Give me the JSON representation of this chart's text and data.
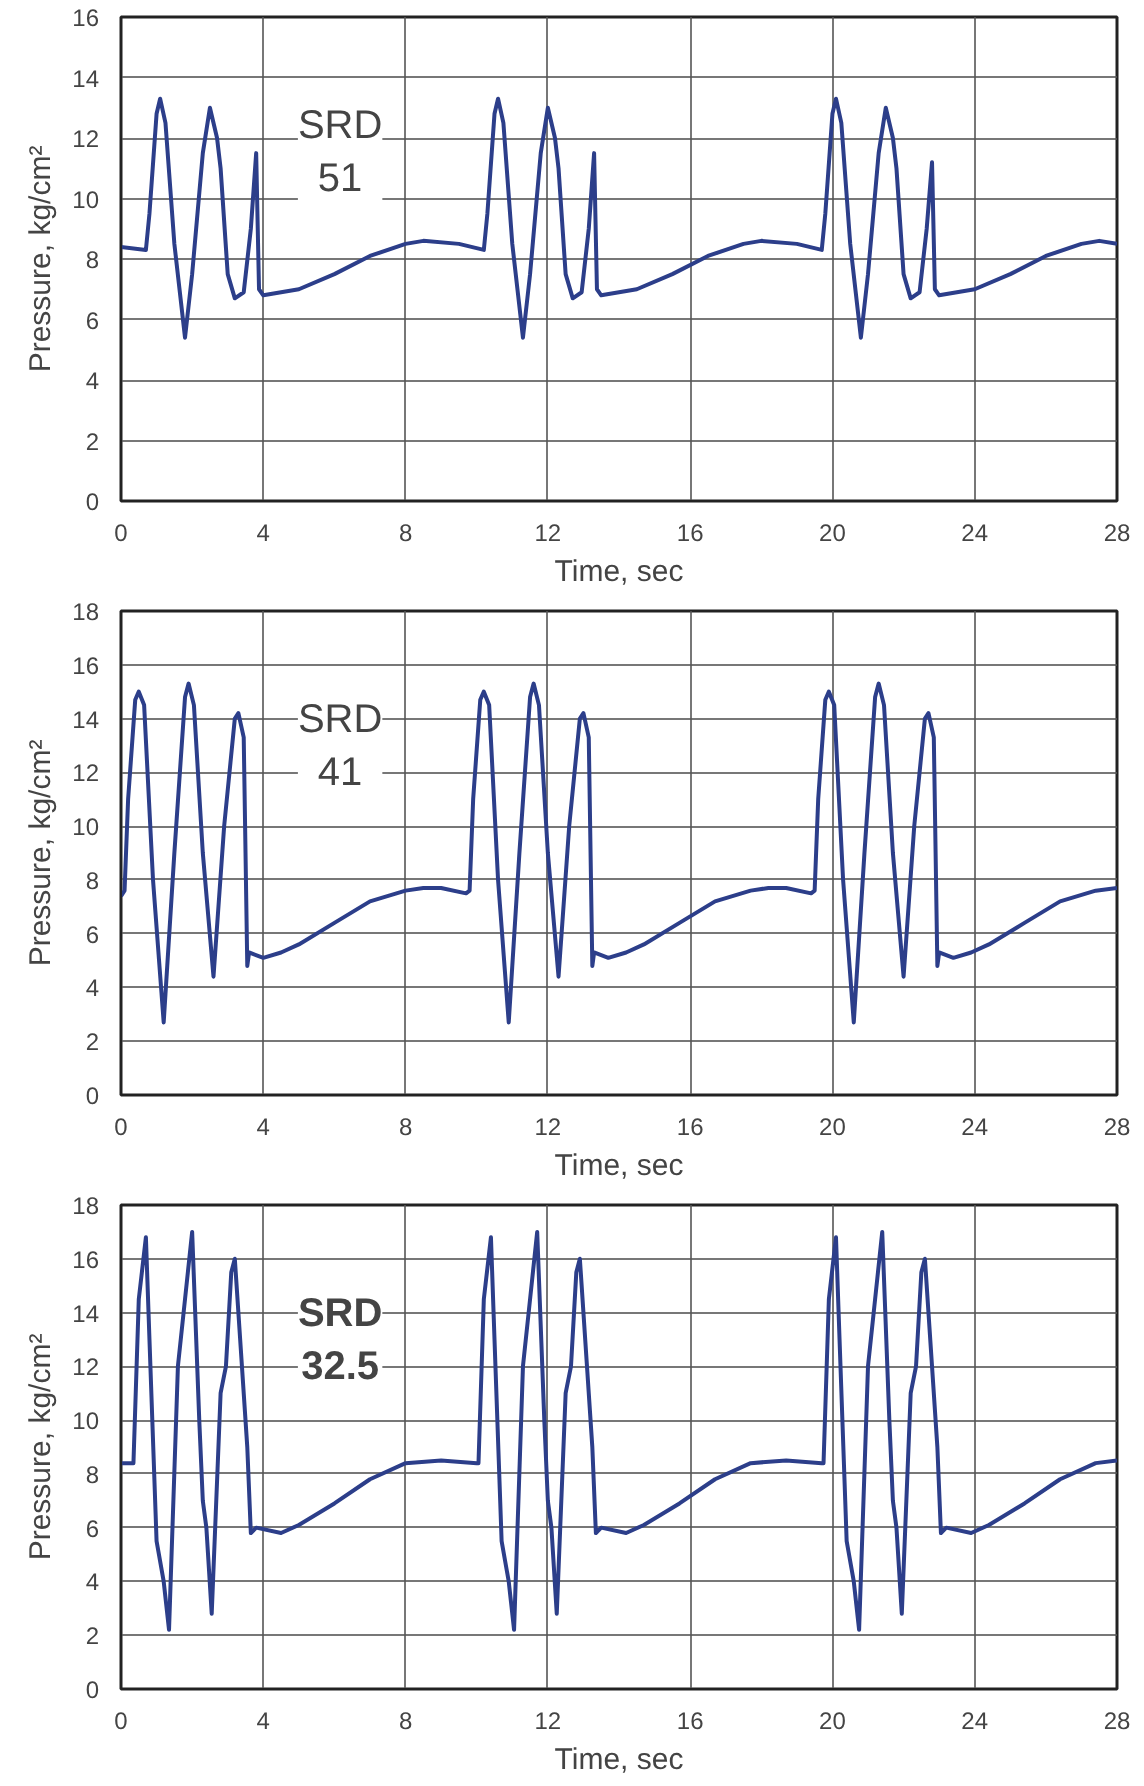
{
  "chart_data": [
    {
      "type": "line",
      "xlabel": "Time, sec",
      "ylabel": "Pressure, kg/cm²",
      "annotations": [
        "SRD\n51"
      ],
      "xlim": [
        0,
        28
      ],
      "ylim": [
        0,
        16
      ],
      "xticks": [
        0,
        4,
        8,
        12,
        16,
        20,
        24,
        28
      ],
      "yticks": [
        0,
        2,
        4,
        6,
        8,
        10,
        12,
        14,
        16
      ],
      "grid": true,
      "series": [
        {
          "color": "#2c3e8a",
          "x": [
            0,
            0.7,
            0.8,
            1.0,
            1.1,
            1.25,
            1.5,
            1.8,
            2.0,
            2.3,
            2.5,
            2.7,
            2.8,
            3.0,
            3.2,
            3.45,
            3.65,
            3.8,
            3.88,
            4.0,
            4.5,
            5.0,
            6.0,
            7.0,
            8.0,
            8.5,
            9.5,
            10.2,
            10.3,
            10.5,
            10.6,
            10.75,
            11.0,
            11.3,
            11.5,
            11.8,
            12.0,
            12.2,
            12.3,
            12.5,
            12.7,
            12.95,
            13.15,
            13.3,
            13.38,
            13.5,
            14.0,
            14.5,
            15.5,
            16.5,
            17.5,
            18.0,
            19.0,
            19.7,
            19.8,
            20.0,
            20.1,
            20.25,
            20.5,
            20.8,
            21.0,
            21.3,
            21.5,
            21.7,
            21.8,
            22.0,
            22.2,
            22.45,
            22.65,
            22.8,
            22.88,
            23.0,
            23.5,
            24.0,
            25.0,
            26.0,
            27.0,
            27.5,
            28.0
          ],
          "values": [
            8.4,
            8.3,
            9.5,
            12.8,
            13.3,
            12.5,
            8.5,
            5.4,
            7.5,
            11.5,
            13.0,
            12.0,
            11.0,
            7.5,
            6.7,
            6.9,
            9.0,
            11.5,
            7.0,
            6.8,
            6.9,
            7.0,
            7.5,
            8.1,
            8.5,
            8.6,
            8.5,
            8.3,
            9.5,
            12.8,
            13.3,
            12.5,
            8.5,
            5.4,
            7.5,
            11.5,
            13.0,
            12.0,
            11.0,
            7.5,
            6.7,
            6.9,
            9.0,
            11.5,
            7.0,
            6.8,
            6.9,
            7.0,
            7.5,
            8.1,
            8.5,
            8.6,
            8.5,
            8.3,
            9.5,
            12.8,
            13.3,
            12.5,
            8.5,
            5.4,
            7.5,
            11.5,
            13.0,
            12.0,
            11.0,
            7.5,
            6.7,
            6.9,
            9.0,
            11.2,
            7.0,
            6.8,
            6.9,
            7.0,
            7.5,
            8.1,
            8.5,
            8.6,
            8.5
          ]
        }
      ]
    },
    {
      "type": "line",
      "xlabel": "Time, sec",
      "ylabel": "Pressure, kg/cm²",
      "annotations": [
        "SRD\n41"
      ],
      "xlim": [
        0,
        28
      ],
      "ylim": [
        0,
        18
      ],
      "xticks": [
        0,
        4,
        8,
        12,
        16,
        20,
        24,
        28
      ],
      "yticks": [
        0,
        2,
        4,
        6,
        8,
        10,
        12,
        14,
        16,
        18
      ],
      "grid": true,
      "series": [
        {
          "color": "#2c3e8a",
          "x": [
            0,
            0.1,
            0.2,
            0.4,
            0.5,
            0.65,
            0.9,
            1.2,
            1.5,
            1.8,
            1.9,
            2.05,
            2.3,
            2.6,
            2.9,
            3.2,
            3.3,
            3.45,
            3.55,
            3.6,
            4.0,
            4.5,
            5.0,
            6.0,
            7.0,
            8.0,
            8.5,
            9.0,
            9.7,
            9.8,
            9.9,
            10.1,
            10.2,
            10.35,
            10.6,
            10.9,
            11.2,
            11.5,
            11.6,
            11.75,
            12.0,
            12.3,
            12.6,
            12.9,
            13.0,
            13.15,
            13.25,
            13.3,
            13.7,
            14.2,
            14.7,
            15.7,
            16.7,
            17.7,
            18.2,
            18.7,
            19.4,
            19.5,
            19.6,
            19.8,
            19.9,
            20.05,
            20.3,
            20.6,
            20.9,
            21.2,
            21.3,
            21.45,
            21.7,
            22.0,
            22.3,
            22.6,
            22.7,
            22.85,
            22.95,
            23.0,
            23.4,
            23.9,
            24.4,
            25.4,
            26.4,
            27.4,
            28.0
          ],
          "values": [
            7.4,
            7.6,
            11,
            14.7,
            15.0,
            14.5,
            8,
            2.7,
            9,
            14.8,
            15.3,
            14.5,
            9,
            4.4,
            10,
            14.0,
            14.2,
            13.3,
            4.8,
            5.3,
            5.1,
            5.3,
            5.6,
            6.4,
            7.2,
            7.6,
            7.7,
            7.7,
            7.5,
            7.6,
            11,
            14.7,
            15.0,
            14.5,
            8,
            2.7,
            9,
            14.8,
            15.3,
            14.5,
            9,
            4.4,
            10,
            14.0,
            14.2,
            13.3,
            4.8,
            5.3,
            5.1,
            5.3,
            5.6,
            6.4,
            7.2,
            7.6,
            7.7,
            7.7,
            7.5,
            7.6,
            11,
            14.7,
            15.0,
            14.5,
            8,
            2.7,
            9,
            14.8,
            15.3,
            14.5,
            9,
            4.4,
            10,
            14.0,
            14.2,
            13.3,
            4.8,
            5.3,
            5.1,
            5.3,
            5.6,
            6.4,
            7.2,
            7.6,
            7.7
          ]
        }
      ]
    },
    {
      "type": "line",
      "xlabel": "Time, sec",
      "ylabel": "Pressure, kg/cm²",
      "annotations": [
        "SRD\n32.5"
      ],
      "xlim": [
        0,
        28
      ],
      "ylim": [
        0,
        18
      ],
      "xticks": [
        0,
        4,
        8,
        12,
        16,
        20,
        24,
        28
      ],
      "yticks": [
        0,
        2,
        4,
        6,
        8,
        10,
        12,
        14,
        16,
        18
      ],
      "grid": true,
      "series": [
        {
          "color": "#2c3e8a",
          "x": [
            0,
            0.35,
            0.5,
            0.7,
            0.8,
            1.0,
            1.2,
            1.35,
            1.6,
            1.8,
            2.0,
            2.2,
            2.3,
            2.4,
            2.55,
            2.8,
            2.95,
            3.1,
            3.2,
            3.4,
            3.55,
            3.65,
            3.8,
            4.5,
            5.0,
            6.0,
            7.0,
            8.0,
            9.0,
            10.0,
            10.05,
            10.2,
            10.4,
            10.5,
            10.7,
            10.9,
            11.05,
            11.3,
            11.5,
            11.7,
            11.9,
            12.0,
            12.1,
            12.25,
            12.5,
            12.65,
            12.8,
            12.9,
            13.1,
            13.25,
            13.35,
            13.5,
            14.2,
            14.7,
            15.7,
            16.7,
            17.7,
            18.7,
            19.7,
            19.75,
            19.9,
            20.1,
            20.2,
            20.4,
            20.6,
            20.75,
            21.0,
            21.2,
            21.4,
            21.6,
            21.7,
            21.8,
            21.95,
            22.2,
            22.35,
            22.5,
            22.6,
            22.8,
            22.95,
            23.05,
            23.2,
            23.9,
            24.4,
            25.4,
            26.4,
            27.4,
            28.0
          ],
          "values": [
            8.4,
            8.4,
            14.5,
            16.8,
            13,
            5.5,
            4,
            2.2,
            12,
            14.5,
            17.0,
            10,
            7,
            6,
            2.8,
            11,
            12,
            15.5,
            16.0,
            12,
            9,
            5.8,
            6.0,
            5.8,
            6.1,
            6.9,
            7.8,
            8.4,
            8.5,
            8.4,
            8.4,
            14.5,
            16.8,
            13,
            5.5,
            4,
            2.2,
            12,
            14.5,
            17.0,
            10,
            7,
            6,
            2.8,
            11,
            12,
            15.5,
            16.0,
            12,
            9,
            5.8,
            6.0,
            5.8,
            6.1,
            6.9,
            7.8,
            8.4,
            8.5,
            8.4,
            8.4,
            14.5,
            16.8,
            13,
            5.5,
            4,
            2.2,
            12,
            14.5,
            17.0,
            10,
            7,
            6,
            2.8,
            11,
            12,
            15.5,
            16.0,
            12,
            9,
            5.8,
            6.0,
            5.8,
            6.1,
            6.9,
            7.8,
            8.4,
            8.5
          ]
        }
      ]
    }
  ]
}
